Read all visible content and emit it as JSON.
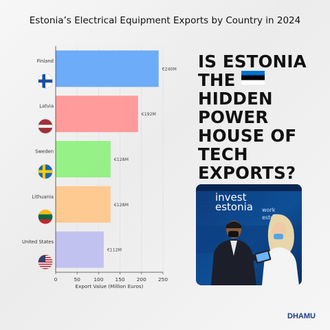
{
  "chart_data": {
    "type": "bar",
    "orientation": "horizontal",
    "title": "Estonia’s Electrical Equipment Exports by Country in 2024",
    "categories": [
      "Finland",
      "Latvia",
      "Sweden",
      "Lithuania",
      "United States"
    ],
    "values": [
      240,
      192,
      128,
      128,
      112
    ],
    "data_labels": [
      "€240M",
      "€192M",
      "€128M",
      "€128M",
      "€112M"
    ],
    "colors": [
      "#64a8f8",
      "#ff9696",
      "#90f080",
      "#ffc88c",
      "#c0c0f0"
    ],
    "xlabel": "Export Value (Million Euros)",
    "ylabel": "",
    "xlim": [
      0,
      250
    ],
    "xticks": [
      "0",
      "50",
      "100",
      "150",
      "200",
      "250"
    ],
    "grid": true,
    "flags": [
      "finland-flag",
      "latvia-flag",
      "sweden-flag",
      "lithuania-flag",
      "united-states-flag"
    ]
  },
  "headline": {
    "lines": [
      "IS ESTONIA",
      "THE",
      "HIDDEN",
      "POWER",
      "HOUSE OF",
      "TECH",
      "EXPORTS?"
    ]
  },
  "photo": {
    "sign_line1": "invest",
    "sign_line2": "estonia",
    "sign_right1": "work",
    "sign_right2": "estonia"
  },
  "brand": {
    "name": "DHAMU"
  }
}
